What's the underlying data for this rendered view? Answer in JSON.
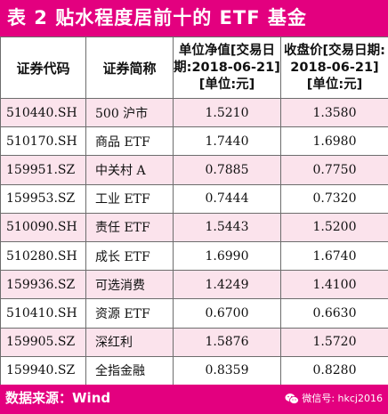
{
  "title": "表 2   贴水程度居前十的 ETF 基金",
  "columns": [
    "证券代码",
    "证券简称",
    "单位净值[交易日期:2018-06-21][单位:元]",
    "收盘价[交易日期:2018-06-21][单位:元]"
  ],
  "rows": [
    {
      "code": "510440.SH",
      "name": "500 沪市",
      "nav": "1.5210",
      "close": "1.3580"
    },
    {
      "code": "510170.SH",
      "name": "商品 ETF",
      "nav": "1.7440",
      "close": "1.6980"
    },
    {
      "code": "159951.SZ",
      "name": "中关村 A",
      "nav": "0.7885",
      "close": "0.7750"
    },
    {
      "code": "159953.SZ",
      "name": "工业 ETF",
      "nav": "0.7444",
      "close": "0.7320"
    },
    {
      "code": "510090.SH",
      "name": "责任 ETF",
      "nav": "1.5443",
      "close": "1.5200"
    },
    {
      "code": "510280.SH",
      "name": "成长 ETF",
      "nav": "1.6990",
      "close": "1.6740"
    },
    {
      "code": "159936.SZ",
      "name": "可选消费",
      "nav": "1.4249",
      "close": "1.4100"
    },
    {
      "code": "510410.SH",
      "name": "资源 ETF",
      "nav": "0.6700",
      "close": "0.6630"
    },
    {
      "code": "159905.SZ",
      "name": "深红利",
      "nav": "1.5876",
      "close": "1.5720"
    },
    {
      "code": "159940.SZ",
      "name": "全指金融",
      "nav": "0.8359",
      "close": "0.8280"
    }
  ],
  "footer": {
    "source": "数据来源：Wind",
    "wechat": "微信号: hkcj2016"
  },
  "colors": {
    "accent": "#e3007f",
    "row_stripe": "#fbe3ec"
  }
}
